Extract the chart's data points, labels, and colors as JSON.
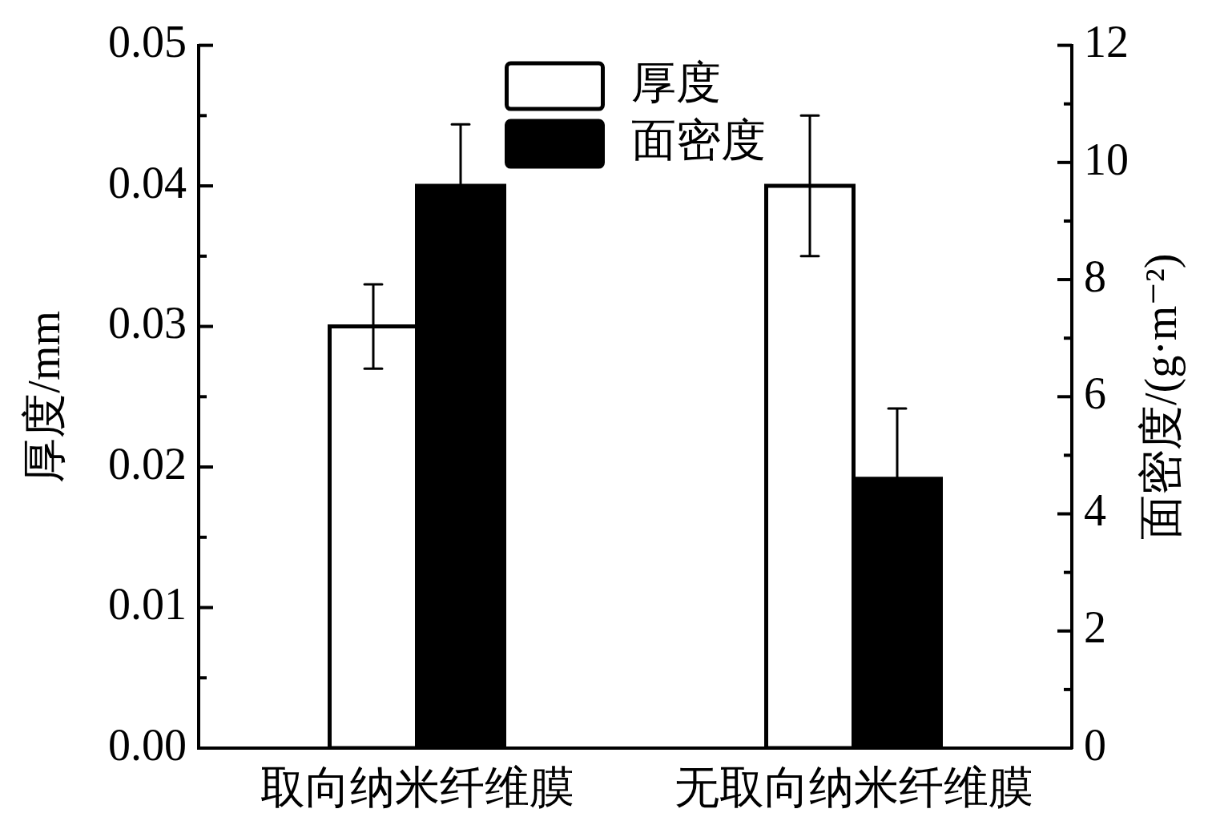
{
  "chart_data": {
    "type": "bar",
    "categories": [
      "取向纳米纤维膜",
      "无取向纳米纤维膜"
    ],
    "series": [
      {
        "name": "厚度",
        "color": "#ffffff",
        "values": [
          0.03,
          0.04
        ],
        "errors": [
          0.003,
          0.005
        ]
      },
      {
        "name": "面密度",
        "color": "#000000",
        "values": [
          9.6,
          4.6
        ],
        "errors": [
          1.05,
          1.2
        ],
        "axis": "y2"
      }
    ],
    "ylabel": "厚度/mm",
    "y2label": "面密度/(g·m⁻²)",
    "ylim": [
      0,
      0.05
    ],
    "yticks": [
      {
        "value": 0,
        "label": "0.00"
      },
      {
        "value": 0.005,
        "label": null
      },
      0.01,
      {
        "value": 0.015,
        "label": null
      },
      0.02,
      {
        "value": 0.025,
        "label": null
      },
      0.03,
      {
        "value": 0.035,
        "label": null
      },
      0.04,
      {
        "value": 0.045,
        "label": null
      },
      0.05
    ],
    "y2lim": [
      0,
      12
    ],
    "y2ticks": [
      0,
      {
        "value": 1,
        "label": null
      },
      2,
      {
        "value": 3,
        "label": null
      },
      4,
      {
        "value": 5,
        "label": null
      },
      6,
      {
        "value": 7,
        "label": null
      },
      8,
      {
        "value": 9,
        "label": null
      },
      10,
      {
        "value": 11,
        "label": null
      },
      12
    ],
    "legend": "top",
    "grid": false
  }
}
